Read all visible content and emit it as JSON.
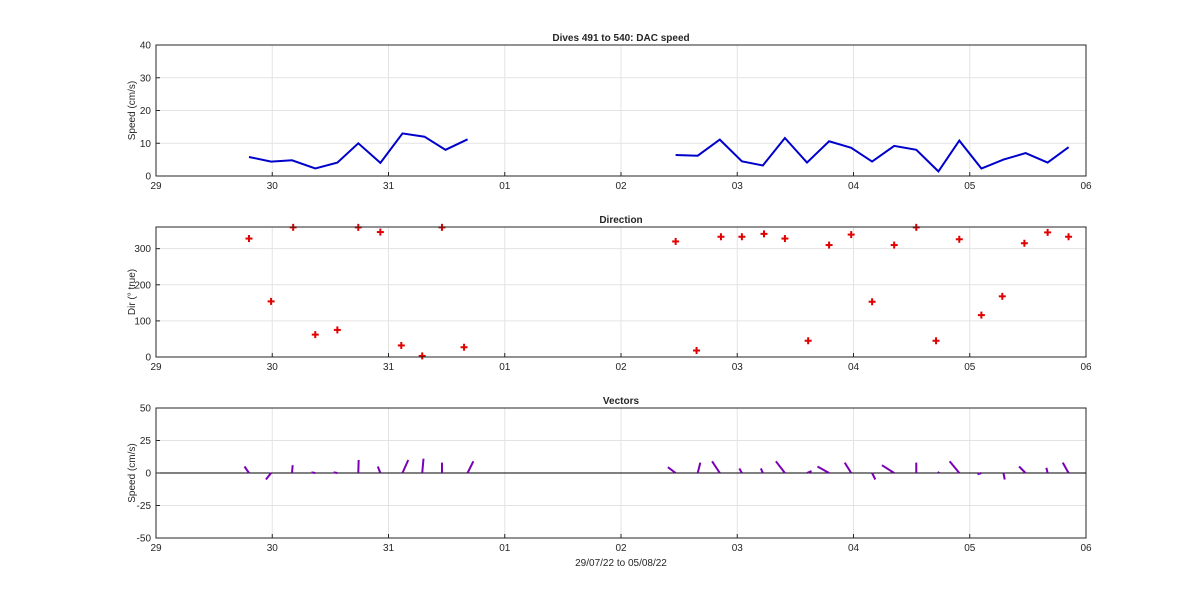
{
  "figure": {
    "xlabel": "29/07/22 to 05/08/22"
  },
  "chart_data": [
    {
      "type": "line",
      "title": "Dives 491 to 540: DAC speed",
      "xlabel": "",
      "ylabel": "Speed (cm/s)",
      "xlim": [
        0,
        8
      ],
      "ylim": [
        0,
        40
      ],
      "xticks": [
        0,
        1,
        2,
        3,
        4,
        5,
        6,
        7,
        8
      ],
      "xticklabels": [
        "29",
        "30",
        "31",
        "01",
        "02",
        "03",
        "04",
        "05",
        "06"
      ],
      "yticks": [
        0,
        10,
        20,
        30,
        40
      ],
      "grid": true,
      "color": "#0000cc",
      "series": [
        {
          "segments": [
            [
              [
                0.8,
                5.8
              ],
              [
                0.99,
                4.4
              ],
              [
                1.17,
                4.8
              ],
              [
                1.37,
                2.3
              ],
              [
                1.56,
                4.1
              ],
              [
                1.74,
                10.0
              ],
              [
                1.93,
                4.0
              ],
              [
                2.12,
                13.0
              ],
              [
                2.31,
                12.0
              ],
              [
                2.49,
                8.0
              ],
              [
                2.68,
                11.2
              ]
            ],
            [
              [
                4.47,
                6.4
              ],
              [
                4.66,
                6.2
              ],
              [
                4.85,
                11.1
              ],
              [
                5.04,
                4.5
              ],
              [
                5.22,
                3.2
              ],
              [
                5.41,
                11.6
              ],
              [
                5.6,
                4.1
              ],
              [
                5.79,
                10.6
              ],
              [
                5.98,
                8.6
              ],
              [
                6.16,
                4.4
              ],
              [
                6.35,
                9.2
              ],
              [
                6.54,
                8.0
              ],
              [
                6.73,
                1.4
              ],
              [
                6.91,
                10.8
              ],
              [
                7.1,
                2.3
              ],
              [
                7.29,
                5.0
              ],
              [
                7.48,
                7.0
              ],
              [
                7.67,
                4.1
              ],
              [
                7.85,
                8.8
              ]
            ]
          ]
        }
      ]
    },
    {
      "type": "scatter",
      "title": "Direction",
      "xlabel": "",
      "ylabel": "Dir (° true)",
      "xlim": [
        0,
        8
      ],
      "ylim": [
        0,
        360
      ],
      "xticks": [
        0,
        1,
        2,
        3,
        4,
        5,
        6,
        7,
        8
      ],
      "xticklabels": [
        "29",
        "30",
        "31",
        "01",
        "02",
        "03",
        "04",
        "05",
        "06"
      ],
      "yticks": [
        0,
        100,
        200,
        300
      ],
      "grid": true,
      "color": "#e00000",
      "marker": "+",
      "points": [
        [
          0.8,
          328
        ],
        [
          0.99,
          154
        ],
        [
          1.18,
          359
        ],
        [
          1.37,
          62
        ],
        [
          1.56,
          75
        ],
        [
          1.74,
          359
        ],
        [
          1.93,
          346
        ],
        [
          2.11,
          32
        ],
        [
          2.29,
          3
        ],
        [
          2.46,
          359
        ],
        [
          2.65,
          27
        ],
        [
          4.47,
          320
        ],
        [
          4.65,
          18
        ],
        [
          4.86,
          333
        ],
        [
          5.04,
          333
        ],
        [
          5.23,
          341
        ],
        [
          5.41,
          328
        ],
        [
          5.61,
          45
        ],
        [
          5.79,
          310
        ],
        [
          5.98,
          339
        ],
        [
          6.16,
          153
        ],
        [
          6.35,
          310
        ],
        [
          6.54,
          359
        ],
        [
          6.71,
          45
        ],
        [
          6.91,
          326
        ],
        [
          7.1,
          116
        ],
        [
          7.28,
          168
        ],
        [
          7.47,
          315
        ],
        [
          7.67,
          345
        ],
        [
          7.85,
          333
        ]
      ]
    },
    {
      "type": "vector",
      "title": "Vectors",
      "xlabel": "",
      "ylabel": "Speed (cm/s)",
      "xlim": [
        0,
        8
      ],
      "ylim": [
        -50,
        50
      ],
      "xticks": [
        0,
        1,
        2,
        3,
        4,
        5,
        6,
        7,
        8
      ],
      "xticklabels": [
        "29",
        "30",
        "31",
        "01",
        "02",
        "03",
        "04",
        "05",
        "06"
      ],
      "yticks": [
        -50,
        -25,
        0,
        25,
        50
      ],
      "grid": true,
      "color": "#7a00b5",
      "vectors": [
        [
          0.8,
          -3.5,
          5.0
        ],
        [
          0.99,
          -4.0,
          -5.0
        ],
        [
          1.17,
          0.5,
          6.0
        ],
        [
          1.37,
          -3.0,
          0.5
        ],
        [
          1.56,
          -3.0,
          0.5
        ],
        [
          1.74,
          0.3,
          10.0
        ],
        [
          1.93,
          -2.0,
          5.0
        ],
        [
          2.12,
          4.5,
          10.0
        ],
        [
          2.29,
          1.0,
          11.0
        ],
        [
          2.46,
          0.0,
          8.0
        ],
        [
          2.68,
          4.5,
          9.0
        ],
        [
          4.47,
          -6.0,
          4.5
        ],
        [
          4.66,
          2.0,
          8.0
        ],
        [
          4.85,
          -6.0,
          9.0
        ],
        [
          5.04,
          -2.0,
          3.5
        ],
        [
          5.22,
          -1.5,
          3.5
        ],
        [
          5.41,
          -7.0,
          9.0
        ],
        [
          5.6,
          3.5,
          1.5
        ],
        [
          5.79,
          -9.0,
          5.0
        ],
        [
          5.98,
          -5.0,
          8.0
        ],
        [
          6.16,
          2.5,
          -5.0
        ],
        [
          6.35,
          -9.5,
          6.0
        ],
        [
          6.54,
          0.0,
          8.0
        ],
        [
          6.73,
          0.5,
          1.0
        ],
        [
          6.91,
          -7.5,
          9.0
        ],
        [
          7.1,
          -3.0,
          -1.0
        ],
        [
          7.29,
          1.0,
          -5.0
        ],
        [
          7.48,
          -5.0,
          5.0
        ],
        [
          7.67,
          -1.0,
          4.0
        ],
        [
          7.85,
          -4.5,
          8.0
        ]
      ]
    }
  ]
}
